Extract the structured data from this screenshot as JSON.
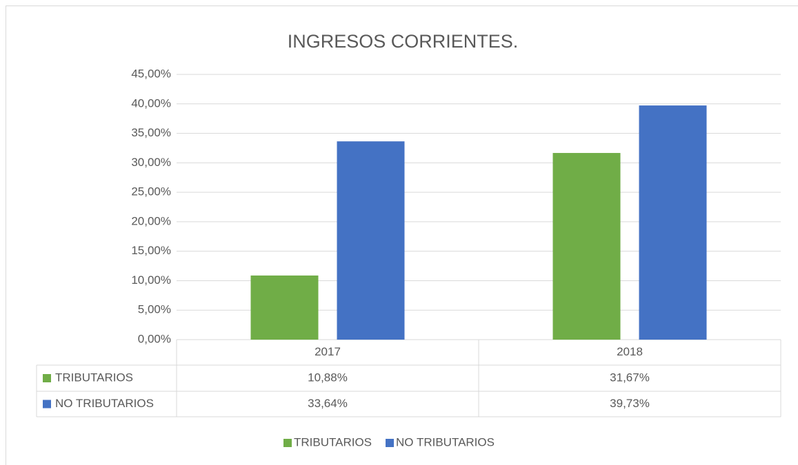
{
  "chart_data": {
    "type": "bar",
    "title": "INGRESOS CORRIENTES.",
    "categories": [
      "2017",
      "2018"
    ],
    "series": [
      {
        "name": "TRIBUTARIOS",
        "color": "#70ad47",
        "values": [
          10.88,
          31.67
        ],
        "value_labels": [
          "10,88%",
          "31,67%"
        ]
      },
      {
        "name": "NO TRIBUTARIOS",
        "color": "#4472c4",
        "values": [
          33.64,
          39.73
        ],
        "value_labels": [
          "33,64%",
          "39,73%"
        ]
      }
    ],
    "ylim": [
      0,
      45
    ],
    "yticks": [
      {
        "value": 0,
        "label": "0,00%"
      },
      {
        "value": 5,
        "label": "5,00%"
      },
      {
        "value": 10,
        "label": "10,00%"
      },
      {
        "value": 15,
        "label": "15,00%"
      },
      {
        "value": 20,
        "label": "20,00%"
      },
      {
        "value": 25,
        "label": "25,00%"
      },
      {
        "value": 30,
        "label": "30,00%"
      },
      {
        "value": 35,
        "label": "35,00%"
      },
      {
        "value": 40,
        "label": "40,00%"
      },
      {
        "value": 45,
        "label": "45,00%"
      }
    ],
    "grid": true,
    "legend": "bottom"
  }
}
